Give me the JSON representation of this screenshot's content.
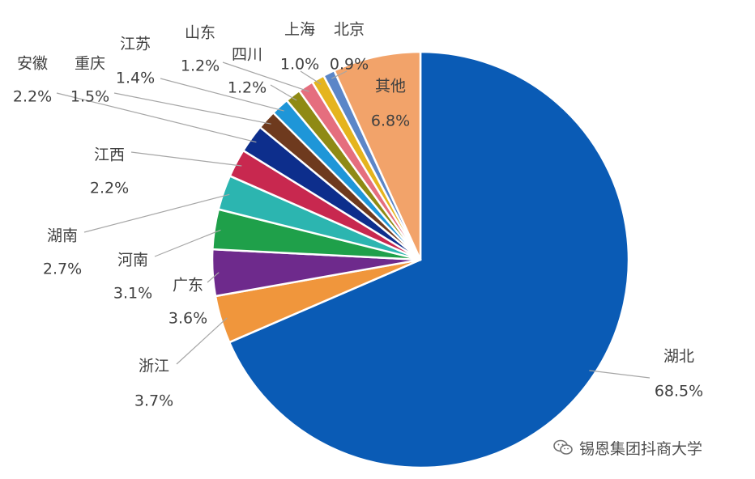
{
  "chart_data": {
    "type": "pie",
    "start_angle_deg": 0,
    "direction": "clockwise",
    "slices": [
      {
        "name": "湖北",
        "value": 68.5,
        "label": "68.5%",
        "color": "#0A5BB5"
      },
      {
        "name": "浙江",
        "value": 3.7,
        "label": "3.7%",
        "color": "#F0963C"
      },
      {
        "name": "广东",
        "value": 3.6,
        "label": "3.6%",
        "color": "#6E2A8C"
      },
      {
        "name": "河南",
        "value": 3.1,
        "label": "3.1%",
        "color": "#1FA04A"
      },
      {
        "name": "湖南",
        "value": 2.7,
        "label": "2.7%",
        "color": "#2CB5B0"
      },
      {
        "name": "江西",
        "value": 2.2,
        "label": "2.2%",
        "color": "#C8284F"
      },
      {
        "name": "安徽",
        "value": 2.2,
        "label": "2.2%",
        "color": "#0D2E8C"
      },
      {
        "name": "重庆",
        "value": 1.5,
        "label": "1.5%",
        "color": "#6E3A1E"
      },
      {
        "name": "江苏",
        "value": 1.4,
        "label": "1.4%",
        "color": "#1E96D8"
      },
      {
        "name": "四川",
        "value": 1.2,
        "label": "1.2%",
        "color": "#8F8A14"
      },
      {
        "name": "山东",
        "value": 1.2,
        "label": "1.2%",
        "color": "#E56E7E"
      },
      {
        "name": "上海",
        "value": 1.0,
        "label": "1.0%",
        "color": "#E5B41E"
      },
      {
        "name": "北京",
        "value": 0.9,
        "label": "0.9%",
        "color": "#5B86C8"
      },
      {
        "name": "其他",
        "value": 6.8,
        "label": "6.8%",
        "color": "#F2A36A"
      }
    ]
  },
  "watermark": {
    "text": "锡恩集团抖商大学",
    "icon": "wechat-icon"
  }
}
